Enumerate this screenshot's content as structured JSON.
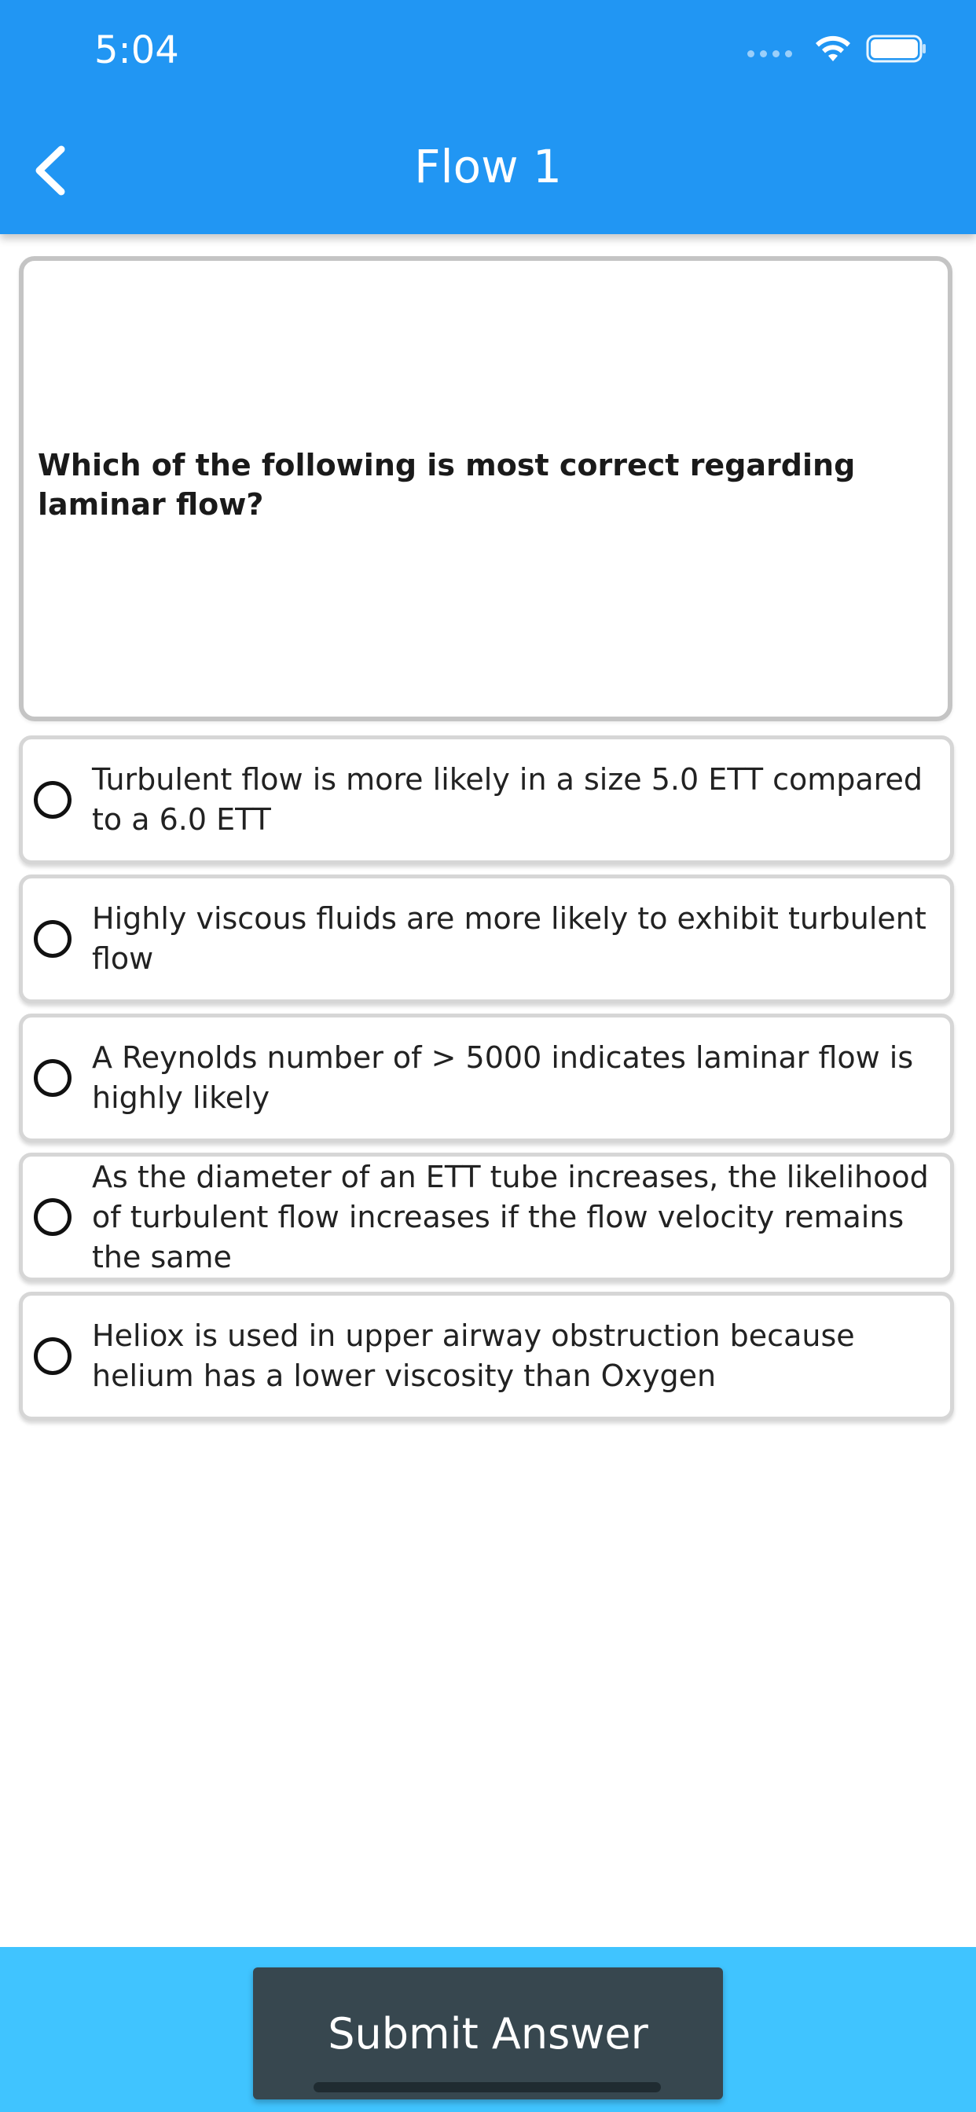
{
  "status_bar": {
    "time": "5:04"
  },
  "header": {
    "title": "Flow 1",
    "back_icon": "chevron-left-icon",
    "background_color": "#2196f3"
  },
  "question": {
    "text": "Which of the following is most correct regarding laminar flow?"
  },
  "options": [
    {
      "label": "Turbulent flow is more likely in a size 5.0 ETT compared to a 6.0 ETT",
      "selected": false
    },
    {
      "label": "Highly viscous fluids are more likely to exhibit turbulent flow",
      "selected": false
    },
    {
      "label": "A Reynolds number of > 5000 indicates laminar flow is highly likely",
      "selected": false
    },
    {
      "label": "As the diameter of an ETT tube increases, the likelihood of turbulent flow increases if the flow velocity remains the same",
      "selected": false
    },
    {
      "label": "Heliox is used in upper airway obstruction because helium has a lower viscosity than Oxygen",
      "selected": false
    }
  ],
  "footer": {
    "submit_label": "Submit Answer",
    "bar_color": "#40c4ff",
    "button_color": "#37474f"
  }
}
